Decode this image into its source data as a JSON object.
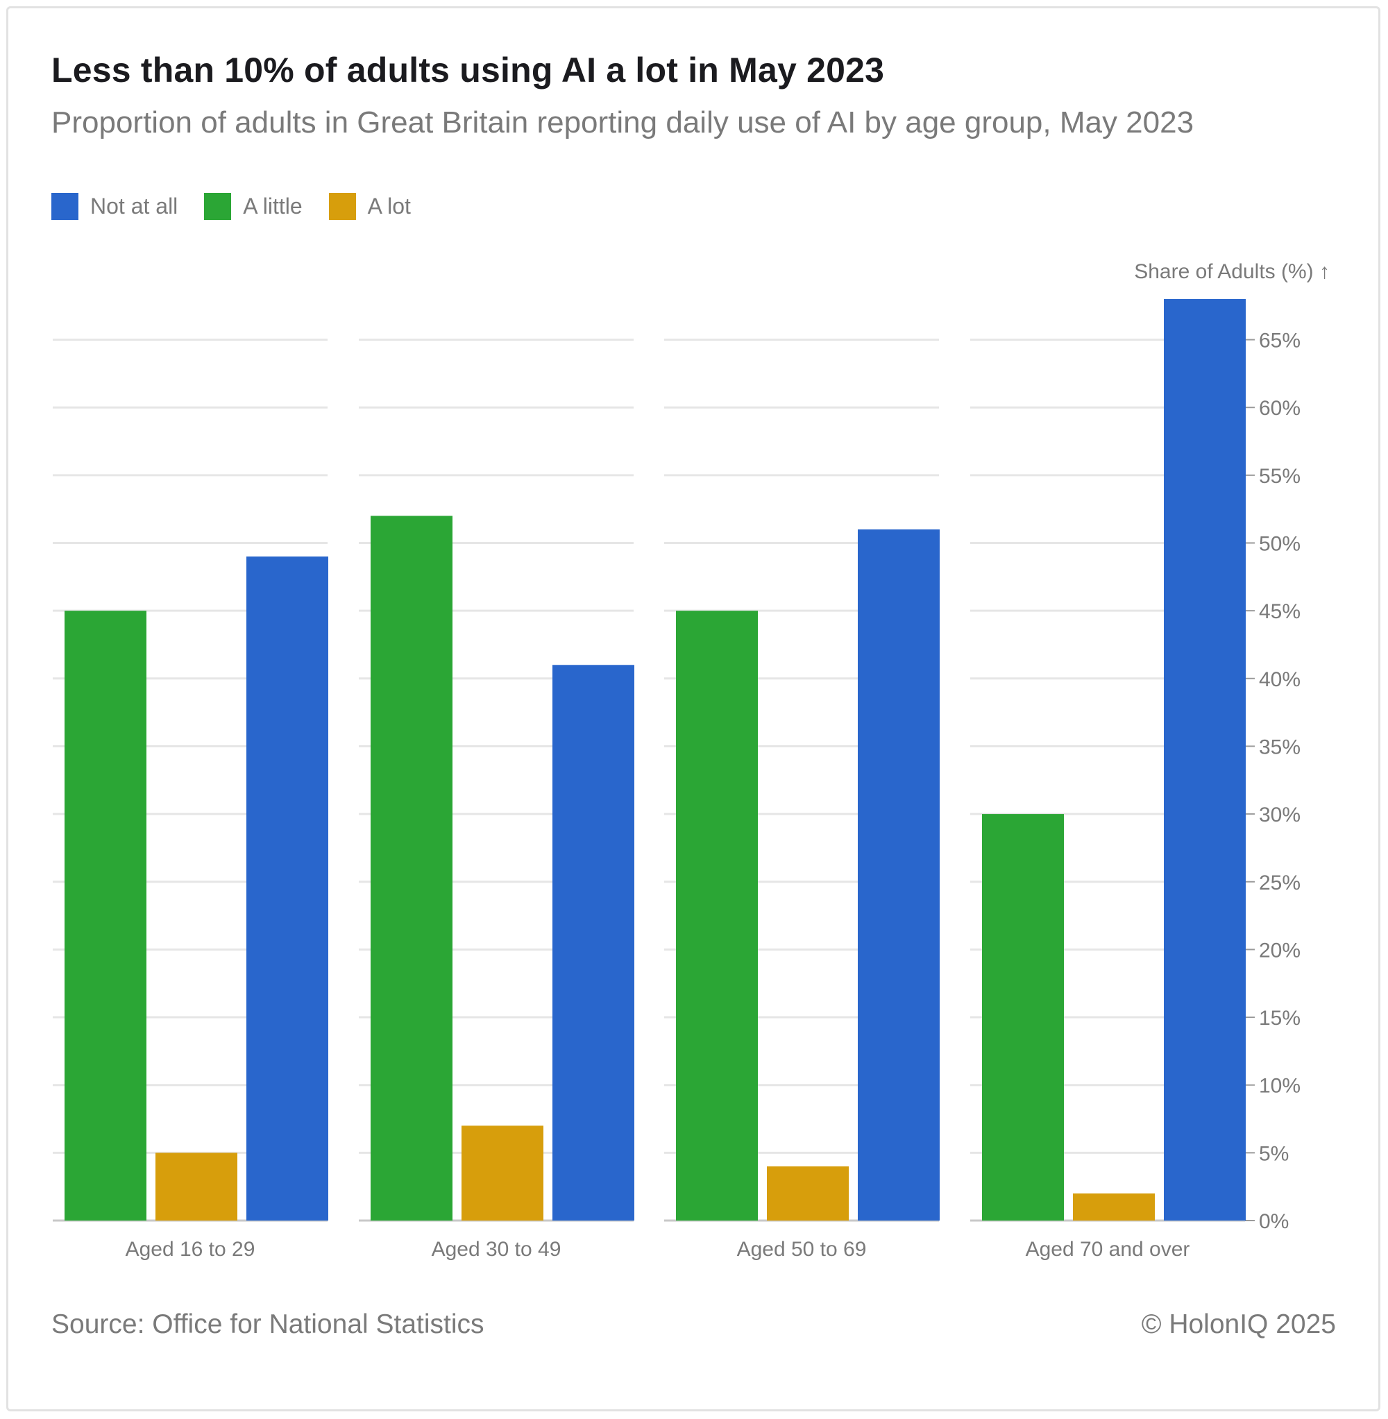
{
  "header": {
    "title": "Less than 10% of adults using AI a lot in May 2023",
    "subtitle": "Proportion of adults in Great Britain reporting daily use of AI by age group, May 2023"
  },
  "legend": [
    {
      "label": "Not at all",
      "color": "#2966cc"
    },
    {
      "label": "A little",
      "color": "#2ba635"
    },
    {
      "label": "A lot",
      "color": "#d79e0c"
    }
  ],
  "footer": {
    "source": "Source: Office for National Statistics",
    "copyright": "© HolonIQ 2025"
  },
  "chart_data": {
    "type": "bar",
    "title": "Less than 10% of adults using AI a lot in May 2023",
    "subtitle": "Proportion of adults in Great Britain reporting daily use of AI by age group, May 2023",
    "ylabel": "Share of Adults (%) ↑",
    "xlabel": "",
    "ylim": [
      0,
      68
    ],
    "yticks": [
      0,
      5,
      10,
      15,
      20,
      25,
      30,
      35,
      40,
      45,
      50,
      55,
      60,
      65
    ],
    "ytick_suffix": "%",
    "y_axis_side": "right",
    "grid": true,
    "legend_position": "top-left",
    "categories": [
      "Aged 16 to 29",
      "Aged 30 to 49",
      "Aged 50 to 69",
      "Aged 70 and over"
    ],
    "bar_order": [
      "A little",
      "A lot",
      "Not at all"
    ],
    "series": [
      {
        "name": "Not at all",
        "color": "#2966cc",
        "values": [
          49,
          41,
          51,
          68
        ]
      },
      {
        "name": "A little",
        "color": "#2ba635",
        "values": [
          45,
          52,
          45,
          30
        ]
      },
      {
        "name": "A lot",
        "color": "#d79e0c",
        "values": [
          5,
          7,
          4,
          2
        ]
      }
    ]
  }
}
